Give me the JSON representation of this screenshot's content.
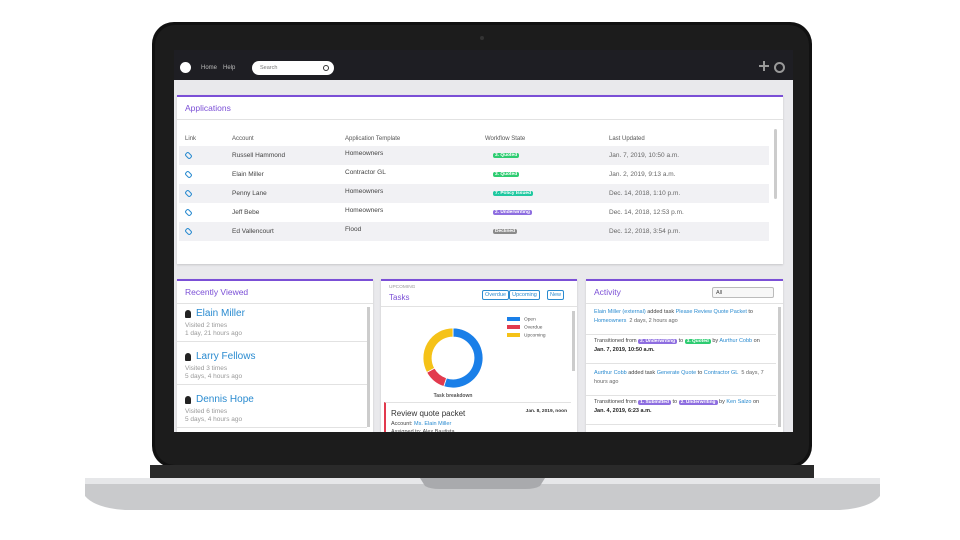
{
  "nav": {
    "links": [
      "Home",
      "Help"
    ],
    "search_placeholder": "Search"
  },
  "applications": {
    "title": "Applications",
    "columns": [
      "Link",
      "Account",
      "Application Template",
      "Workflow State",
      "Last Updated"
    ],
    "rows": [
      {
        "account": "Russell Hammond",
        "template": "Homeowners",
        "state": {
          "label": "3. Quoted",
          "color": "#2ecc71"
        },
        "updated": "Jan. 7, 2019, 10:50 a.m."
      },
      {
        "account": "Elain Miller",
        "template": "Contractor GL",
        "state": {
          "label": "3. Quoted",
          "color": "#2ecc71"
        },
        "updated": "Jan. 2, 2019, 9:13 a.m."
      },
      {
        "account": "Penny Lane",
        "template": "Homeowners",
        "state": {
          "label": "7. Policy Issued",
          "color": "#1fc8a0"
        },
        "updated": "Dec. 14, 2018, 1:10 p.m."
      },
      {
        "account": "Jeff Bebe",
        "template": "Homeowners",
        "state": {
          "label": "2. Underwriting",
          "color": "#8e6ee0"
        },
        "updated": "Dec. 14, 2018, 12:53 p.m."
      },
      {
        "account": "Ed Vallencourt",
        "template": "Flood",
        "state": {
          "label": "Declined",
          "color": "#8a8a8a"
        },
        "updated": "Dec. 12, 2018, 3:54 p.m."
      }
    ]
  },
  "recently_viewed": {
    "title": "Recently Viewed",
    "items": [
      {
        "name": "Elain Miller",
        "visits": "Visited 2 times",
        "when": "1 day, 21 hours ago"
      },
      {
        "name": "Larry Fellows",
        "visits": "Visited 3 times",
        "when": "5 days, 4 hours ago"
      },
      {
        "name": "Dennis Hope",
        "visits": "Visited 6 times",
        "when": "5 days, 4 hours ago"
      }
    ]
  },
  "tasks": {
    "label": "Upcoming",
    "title": "Tasks",
    "buttons": [
      "Overdue",
      "Upcoming"
    ],
    "new_button": "New",
    "chart": {
      "type": "pie",
      "caption": "Task breakdown",
      "series": [
        {
          "name": "Open",
          "color": "#1a7fe8",
          "value": 55
        },
        {
          "name": "Overdue",
          "color": "#e23a4e",
          "value": 12
        },
        {
          "name": "Upcoming",
          "color": "#f5c218",
          "value": 33
        }
      ]
    },
    "task": {
      "title": "Review quote packet",
      "date": "Jan. 8, 2019, noon",
      "account_label": "Account:",
      "account": "Ms. Elain Miller",
      "assigned": "Assigned to: Alex Bautista"
    }
  },
  "activity": {
    "title": "Activity",
    "filter": "All",
    "items": [
      {
        "segments": [
          {
            "text": "Elain Miller",
            "kind": "link"
          },
          {
            "text": " (external)",
            "kind": "link"
          },
          {
            "text": " added task ",
            "kind": "plain"
          },
          {
            "text": "Please Review Quote Packet",
            "kind": "link"
          },
          {
            "text": " to ",
            "kind": "plain"
          },
          {
            "text": "Homeowners",
            "kind": "link"
          }
        ],
        "when": "2 days, 2 hours ago"
      },
      {
        "segments": [
          {
            "text": "Transitioned from ",
            "kind": "plain"
          },
          {
            "text": "2. Underwriting",
            "kind": "badge",
            "color": "#8e6ee0"
          },
          {
            "text": " to ",
            "kind": "plain"
          },
          {
            "text": "3. Quoted",
            "kind": "badge",
            "color": "#2ecc71"
          },
          {
            "text": " by ",
            "kind": "plain"
          },
          {
            "text": "Aurthur Cobb",
            "kind": "link"
          },
          {
            "text": " on ",
            "kind": "plain"
          },
          {
            "text": "Jan. 7, 2019, 10:50 a.m.",
            "kind": "bold"
          }
        ]
      },
      {
        "segments": [
          {
            "text": "Aurthur Cobb",
            "kind": "link"
          },
          {
            "text": " added task ",
            "kind": "plain"
          },
          {
            "text": "Generate Quote",
            "kind": "link"
          },
          {
            "text": " to ",
            "kind": "plain"
          },
          {
            "text": "Contractor GL",
            "kind": "link"
          }
        ],
        "when": "5 days, 7 hours ago"
      },
      {
        "segments": [
          {
            "text": "Transitioned from ",
            "kind": "plain"
          },
          {
            "text": "1. Submitted",
            "kind": "badge",
            "color": "#8e6ee0"
          },
          {
            "text": " to ",
            "kind": "plain"
          },
          {
            "text": "2. Underwriting",
            "kind": "badge",
            "color": "#8e6ee0"
          },
          {
            "text": " by ",
            "kind": "plain"
          },
          {
            "text": "Ken Salzo",
            "kind": "link"
          },
          {
            "text": " on ",
            "kind": "plain"
          },
          {
            "text": "Jan. 4, 2019, 6:23 a.m.",
            "kind": "bold"
          }
        ]
      }
    ]
  }
}
